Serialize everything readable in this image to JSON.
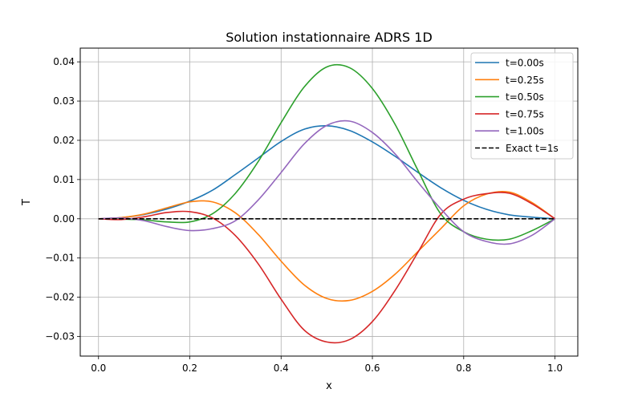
{
  "chart_data": {
    "type": "line",
    "title": "Solution instationnaire ADRS 1D",
    "xlabel": "x",
    "ylabel": "T",
    "xlim": [
      -0.04,
      1.05
    ],
    "ylim": [
      -0.035,
      0.0435
    ],
    "xticks": [
      0.0,
      0.2,
      0.4,
      0.6,
      0.8,
      1.0
    ],
    "xtick_labels": [
      "0.0",
      "0.2",
      "0.4",
      "0.6",
      "0.8",
      "1.0"
    ],
    "yticks": [
      -0.03,
      -0.02,
      -0.01,
      0.0,
      0.01,
      0.02,
      0.03,
      0.04
    ],
    "ytick_labels": [
      "−0.03",
      "−0.02",
      "−0.01",
      "0.00",
      "0.01",
      "0.02",
      "0.03",
      "0.04"
    ],
    "grid": true,
    "legend_position": "top-right",
    "series": [
      {
        "name": "t=0.00s",
        "color": "#1f77b4",
        "dash": "solid",
        "x": [
          0.0,
          0.05,
          0.1,
          0.15,
          0.2,
          0.25,
          0.3,
          0.35,
          0.4,
          0.45,
          0.5,
          0.55,
          0.6,
          0.65,
          0.7,
          0.75,
          0.8,
          0.85,
          0.9,
          0.95,
          1.0
        ],
        "y": [
          0.0,
          0.0003,
          0.0011,
          0.0025,
          0.0045,
          0.0073,
          0.0113,
          0.0155,
          0.0197,
          0.0228,
          0.0237,
          0.0225,
          0.0196,
          0.0159,
          0.0118,
          0.0079,
          0.0047,
          0.0024,
          0.001,
          0.0004,
          0.0
        ]
      },
      {
        "name": "t=0.25s",
        "color": "#ff7f0e",
        "dash": "solid",
        "x": [
          0.0,
          0.05,
          0.1,
          0.15,
          0.2,
          0.25,
          0.3,
          0.35,
          0.4,
          0.45,
          0.5,
          0.55,
          0.6,
          0.65,
          0.7,
          0.75,
          0.8,
          0.85,
          0.9,
          0.95,
          1.0
        ],
        "y": [
          0.0,
          0.0003,
          0.0012,
          0.0028,
          0.0043,
          0.0043,
          0.0015,
          -0.004,
          -0.0108,
          -0.0168,
          -0.0203,
          -0.0208,
          -0.0185,
          -0.0141,
          -0.0083,
          -0.0025,
          0.0033,
          0.0063,
          0.0068,
          0.0041,
          0.0
        ]
      },
      {
        "name": "t=0.50s",
        "color": "#2ca02c",
        "dash": "solid",
        "x": [
          0.0,
          0.05,
          0.1,
          0.15,
          0.2,
          0.25,
          0.3,
          0.35,
          0.4,
          0.45,
          0.5,
          0.55,
          0.6,
          0.65,
          0.7,
          0.75,
          0.8,
          0.85,
          0.9,
          0.95,
          1.0
        ],
        "y": [
          0.0,
          -0.0001,
          -0.0003,
          -0.0008,
          -0.0008,
          0.0013,
          0.0065,
          0.0146,
          0.0245,
          0.0335,
          0.0387,
          0.0385,
          0.0332,
          0.024,
          0.0123,
          0.0012,
          -0.0033,
          -0.0052,
          -0.0052,
          -0.003,
          0.0
        ]
      },
      {
        "name": "t=0.75s",
        "color": "#d62728",
        "dash": "solid",
        "x": [
          0.0,
          0.05,
          0.1,
          0.15,
          0.2,
          0.25,
          0.3,
          0.35,
          0.4,
          0.45,
          0.5,
          0.55,
          0.6,
          0.65,
          0.7,
          0.75,
          0.8,
          0.85,
          0.9,
          0.95,
          1.0
        ],
        "y": [
          0.0,
          -0.0002,
          0.0005,
          0.0016,
          0.0018,
          0.0002,
          -0.0043,
          -0.0115,
          -0.0205,
          -0.0283,
          -0.0314,
          -0.0308,
          -0.0262,
          -0.0182,
          -0.0085,
          0.0012,
          0.005,
          0.0064,
          0.0065,
          0.0038,
          0.0
        ]
      },
      {
        "name": "t=1.00s",
        "color": "#9467bd",
        "dash": "solid",
        "x": [
          0.0,
          0.05,
          0.1,
          0.15,
          0.2,
          0.25,
          0.3,
          0.35,
          0.4,
          0.45,
          0.5,
          0.55,
          0.6,
          0.65,
          0.7,
          0.75,
          0.8,
          0.85,
          0.9,
          0.95,
          1.0
        ],
        "y": [
          0.0,
          0.0002,
          -0.0005,
          -0.002,
          -0.003,
          -0.0025,
          -0.0005,
          0.0048,
          0.0118,
          0.019,
          0.0238,
          0.0249,
          0.022,
          0.0165,
          0.0093,
          0.0025,
          -0.0033,
          -0.0058,
          -0.0064,
          -0.0042,
          0.0
        ]
      },
      {
        "name": "Exact t=1s",
        "color": "#000000",
        "dash": "dashed",
        "x": [
          0.0,
          1.0
        ],
        "y": [
          0.0,
          0.0
        ]
      }
    ]
  }
}
